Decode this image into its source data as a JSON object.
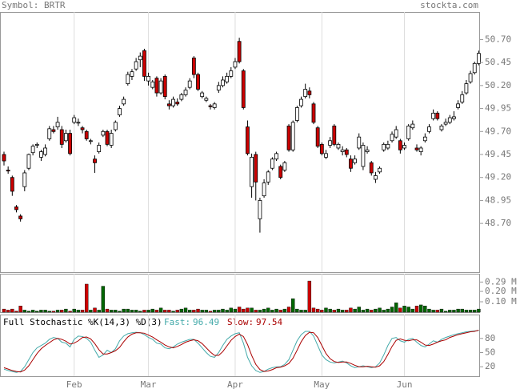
{
  "header": {
    "symbol": "Symbol: BRTR",
    "source": "stockta.com"
  },
  "chart_data": [
    {
      "type": "candlestick",
      "categories": [
        null,
        null,
        null,
        null,
        null,
        null,
        null,
        null,
        null,
        null,
        null,
        null,
        null,
        null,
        null,
        null,
        null,
        "Feb",
        null,
        null,
        null,
        null,
        null,
        null,
        null,
        null,
        null,
        null,
        null,
        null,
        null,
        null,
        null,
        null,
        null,
        "Mar",
        null,
        null,
        null,
        null,
        null,
        null,
        null,
        null,
        null,
        null,
        null,
        null,
        null,
        null,
        null,
        null,
        null,
        null,
        null,
        null,
        "Apr",
        null,
        null,
        null,
        null,
        null,
        null,
        null,
        null,
        null,
        null,
        null,
        null,
        null,
        null,
        null,
        null,
        null,
        null,
        null,
        null,
        "May",
        null,
        null,
        null,
        null,
        null,
        null,
        null,
        null,
        null,
        null,
        null,
        null,
        null,
        null,
        null,
        null,
        null,
        null,
        null,
        "Jun",
        null,
        null,
        null,
        null,
        null,
        null,
        null,
        null,
        null,
        null,
        null,
        null,
        null,
        null,
        null,
        null,
        null,
        null
      ],
      "candles": [
        [
          49.45,
          49.48,
          49.33,
          49.38
        ],
        [
          49.28,
          49.32,
          49.24,
          49.27
        ],
        [
          49.2,
          49.22,
          49.0,
          49.05
        ],
        [
          48.88,
          48.9,
          48.82,
          48.85
        ],
        [
          48.78,
          48.8,
          48.72,
          48.75
        ],
        [
          49.1,
          49.28,
          49.05,
          49.25
        ],
        [
          49.3,
          49.46,
          49.28,
          49.45
        ],
        [
          49.47,
          49.56,
          49.44,
          49.54
        ],
        [
          49.55,
          49.58,
          49.52,
          49.56
        ],
        [
          49.42,
          49.5,
          49.38,
          49.48
        ],
        [
          49.45,
          49.56,
          49.43,
          49.52
        ],
        [
          49.62,
          49.76,
          49.6,
          49.73
        ],
        [
          49.72,
          49.76,
          49.68,
          49.7
        ],
        [
          49.75,
          49.86,
          49.72,
          49.8
        ],
        [
          49.72,
          49.76,
          49.52,
          49.56
        ],
        [
          49.6,
          49.72,
          49.58,
          49.68
        ],
        [
          49.68,
          49.72,
          49.44,
          49.46
        ],
        [
          49.8,
          49.88,
          49.78,
          49.85
        ],
        [
          49.8,
          49.84,
          49.76,
          49.8
        ],
        [
          49.74,
          49.76,
          49.68,
          49.72
        ],
        [
          49.7,
          49.72,
          49.6,
          49.62
        ],
        [
          49.6,
          49.62,
          49.56,
          49.6
        ],
        [
          49.4,
          49.44,
          49.25,
          49.36
        ],
        [
          49.48,
          49.58,
          49.46,
          49.55
        ],
        [
          49.66,
          49.72,
          49.64,
          49.7
        ],
        [
          49.7,
          49.72,
          49.54,
          49.56
        ],
        [
          49.55,
          49.72,
          49.52,
          49.68
        ],
        [
          49.72,
          49.82,
          49.7,
          49.8
        ],
        [
          49.88,
          49.98,
          49.86,
          49.95
        ],
        [
          50.0,
          50.08,
          49.98,
          50.05
        ],
        [
          50.22,
          50.35,
          50.2,
          50.32
        ],
        [
          50.3,
          50.38,
          50.26,
          50.35
        ],
        [
          50.38,
          50.5,
          50.36,
          50.46
        ],
        [
          50.48,
          50.56,
          50.4,
          50.52
        ],
        [
          50.58,
          50.6,
          50.25,
          50.3
        ],
        [
          50.25,
          50.34,
          50.2,
          50.3
        ],
        [
          50.18,
          50.26,
          50.16,
          50.24
        ],
        [
          50.28,
          50.3,
          50.08,
          50.12
        ],
        [
          50.12,
          50.28,
          50.1,
          50.25
        ],
        [
          50.3,
          50.32,
          50.05,
          50.08
        ],
        [
          50.0,
          50.04,
          49.94,
          49.98
        ],
        [
          49.98,
          50.08,
          49.96,
          50.05
        ],
        [
          50.02,
          50.06,
          49.98,
          50.0
        ],
        [
          50.05,
          50.12,
          50.03,
          50.1
        ],
        [
          50.1,
          50.18,
          50.08,
          50.15
        ],
        [
          50.18,
          50.28,
          50.16,
          50.25
        ],
        [
          50.5,
          50.52,
          50.28,
          50.32
        ],
        [
          50.32,
          50.34,
          50.14,
          50.16
        ],
        [
          50.08,
          50.14,
          50.06,
          50.12
        ],
        [
          50.04,
          50.08,
          50.02,
          50.06
        ],
        [
          49.98,
          50.0,
          49.94,
          49.97
        ],
        [
          49.96,
          50.02,
          49.94,
          50.0
        ],
        [
          50.15,
          50.24,
          50.12,
          50.2
        ],
        [
          50.2,
          50.3,
          50.18,
          50.26
        ],
        [
          50.24,
          50.34,
          50.22,
          50.3
        ],
        [
          50.3,
          50.4,
          50.28,
          50.36
        ],
        [
          50.4,
          50.5,
          50.38,
          50.46
        ],
        [
          50.68,
          50.72,
          50.44,
          50.46
        ],
        [
          50.36,
          50.38,
          49.94,
          49.96
        ],
        [
          49.75,
          49.82,
          49.44,
          49.46
        ],
        [
          49.1,
          49.46,
          48.98,
          49.42
        ],
        [
          49.45,
          49.48,
          48.95,
          49.15
        ],
        [
          48.75,
          48.98,
          48.6,
          48.95
        ],
        [
          49.0,
          49.18,
          48.98,
          49.14
        ],
        [
          49.15,
          49.28,
          49.12,
          49.26
        ],
        [
          49.3,
          49.42,
          49.28,
          49.4
        ],
        [
          49.4,
          49.48,
          49.38,
          49.46
        ],
        [
          49.32,
          49.34,
          49.18,
          49.2
        ],
        [
          49.28,
          49.38,
          49.26,
          49.36
        ],
        [
          49.76,
          49.78,
          49.48,
          49.5
        ],
        [
          49.5,
          49.82,
          49.48,
          49.8
        ],
        [
          49.82,
          49.98,
          49.8,
          49.96
        ],
        [
          49.98,
          50.08,
          49.96,
          50.05
        ],
        [
          50.08,
          50.22,
          50.06,
          50.16
        ],
        [
          50.14,
          50.18,
          50.06,
          50.1
        ],
        [
          50.0,
          50.02,
          49.78,
          49.8
        ],
        [
          49.74,
          49.76,
          49.52,
          49.54
        ],
        [
          49.56,
          49.58,
          49.44,
          49.46
        ],
        [
          49.42,
          49.5,
          49.4,
          49.46
        ],
        [
          49.55,
          49.64,
          49.52,
          49.6
        ],
        [
          49.76,
          49.78,
          49.54,
          49.56
        ],
        [
          49.52,
          49.58,
          49.5,
          49.56
        ],
        [
          49.48,
          49.54,
          49.44,
          49.5
        ],
        [
          49.5,
          49.52,
          49.42,
          49.45
        ],
        [
          49.4,
          49.44,
          49.26,
          49.3
        ],
        [
          49.36,
          49.44,
          49.34,
          49.4
        ],
        [
          49.52,
          49.68,
          49.5,
          49.64
        ],
        [
          49.32,
          49.58,
          49.28,
          49.55
        ],
        [
          49.48,
          49.54,
          49.46,
          49.5
        ],
        [
          49.36,
          49.38,
          49.22,
          49.25
        ],
        [
          49.18,
          49.26,
          49.14,
          49.22
        ],
        [
          49.26,
          49.32,
          49.24,
          49.3
        ],
        [
          49.5,
          49.58,
          49.48,
          49.56
        ],
        [
          49.52,
          49.6,
          49.5,
          49.56
        ],
        [
          49.6,
          49.7,
          49.58,
          49.67
        ],
        [
          49.64,
          49.76,
          49.62,
          49.72
        ],
        [
          49.6,
          49.62,
          49.46,
          49.5
        ],
        [
          49.52,
          49.58,
          49.5,
          49.55
        ],
        [
          49.62,
          49.78,
          49.6,
          49.76
        ],
        [
          49.74,
          49.82,
          49.72,
          49.78
        ],
        [
          49.52,
          49.56,
          49.48,
          49.5
        ],
        [
          49.48,
          49.54,
          49.44,
          49.52
        ],
        [
          49.6,
          49.68,
          49.58,
          49.64
        ],
        [
          49.7,
          49.78,
          49.68,
          49.75
        ],
        [
          49.84,
          49.94,
          49.82,
          49.9
        ],
        [
          49.9,
          49.92,
          49.82,
          49.84
        ],
        [
          49.72,
          49.78,
          49.7,
          49.76
        ],
        [
          49.78,
          49.84,
          49.76,
          49.8
        ],
        [
          49.8,
          49.88,
          49.78,
          49.85
        ],
        [
          49.84,
          49.92,
          49.82,
          49.86
        ],
        [
          49.96,
          50.04,
          49.94,
          50.0
        ],
        [
          50.02,
          50.14,
          50.0,
          50.1
        ],
        [
          50.12,
          50.26,
          50.1,
          50.22
        ],
        [
          50.24,
          50.36,
          50.22,
          50.33
        ],
        [
          50.34,
          50.46,
          50.32,
          50.44
        ],
        [
          50.44,
          50.58,
          50.42,
          50.55
        ]
      ],
      "up_color": "#ffffff",
      "down_color": "#cc0000",
      "ylim": [
        48.17,
        51.0
      ],
      "yticks": [
        {
          "value": 50.7,
          "label": "50.70"
        },
        50.45,
        {
          "value": 50.2,
          "label": "50.20"
        },
        49.95,
        {
          "value": 49.7,
          "label": "49.70"
        },
        49.45,
        {
          "value": 49.2,
          "label": "49.20"
        },
        48.95,
        {
          "value": 48.7,
          "label": "48.70"
        }
      ]
    },
    {
      "type": "bar",
      "values": [
        0.03,
        0.02,
        0.03,
        0.01,
        0.06,
        0.02,
        0.01,
        0.02,
        0.01,
        0.02,
        0.02,
        0.01,
        0.01,
        0.02,
        0.02,
        0.03,
        0.01,
        0.03,
        0.02,
        0.02,
        0.27,
        0.02,
        0.04,
        0.02,
        0.25,
        0.03,
        0.02,
        0.02,
        0.01,
        0.03,
        0.03,
        0.02,
        0.02,
        0.01,
        0.02,
        0.02,
        0.03,
        0.02,
        0.04,
        0.02,
        0.02,
        0.01,
        0.02,
        0.03,
        0.04,
        0.02,
        0.02,
        0.03,
        0.02,
        0.02,
        0.01,
        0.02,
        0.02,
        0.03,
        0.02,
        0.04,
        0.03,
        0.05,
        0.03,
        0.04,
        0.04,
        0.02,
        0.02,
        0.03,
        0.04,
        0.02,
        0.03,
        0.02,
        0.03,
        0.05,
        0.13,
        0.03,
        0.02,
        0.02,
        0.3,
        0.04,
        0.03,
        0.02,
        0.04,
        0.03,
        0.02,
        0.03,
        0.02,
        0.02,
        0.04,
        0.03,
        0.05,
        0.02,
        0.03,
        0.02,
        0.03,
        0.04,
        0.02,
        0.03,
        0.05,
        0.09,
        0.04,
        0.06,
        0.05,
        0.03,
        0.06,
        0.07,
        0.06,
        0.03,
        0.02,
        0.02,
        0.03,
        0.01,
        0.02,
        0.02,
        0.03,
        0.03,
        0.02,
        0.02,
        0.02,
        0.03
      ],
      "up_color": "#006600",
      "down_color": "#cc0000",
      "ylim": [
        0,
        0.37
      ],
      "yticks": [
        {
          "value": 0.29,
          "label": "0.29 M"
        },
        {
          "value": 0.2,
          "label": "0.20 M"
        },
        {
          "value": 0.1,
          "label": "0.10 M"
        }
      ]
    },
    {
      "type": "line",
      "title": "Full Stochastic %K(14,3) %D(3)",
      "series": [
        {
          "name": "Fast:",
          "color": "#44aaaa",
          "values": [
            15,
            12,
            10,
            8,
            10,
            20,
            35,
            50,
            60,
            65,
            70,
            78,
            82,
            80,
            72,
            70,
            62,
            78,
            85,
            84,
            80,
            72,
            55,
            40,
            45,
            55,
            50,
            58,
            75,
            85,
            90,
            92,
            93,
            92,
            88,
            82,
            78,
            70,
            68,
            60,
            58,
            62,
            68,
            72,
            75,
            78,
            78,
            70,
            60,
            50,
            42,
            40,
            50,
            65,
            78,
            85,
            90,
            92,
            70,
            40,
            22,
            12,
            8,
            10,
            15,
            18,
            20,
            20,
            25,
            35,
            55,
            75,
            88,
            95,
            95,
            85,
            65,
            45,
            35,
            30,
            28,
            30,
            32,
            28,
            22,
            18,
            20,
            22,
            20,
            18,
            20,
            28,
            45,
            65,
            80,
            82,
            75,
            72,
            78,
            80,
            72,
            65,
            62,
            68,
            75,
            72,
            78,
            82,
            85,
            88,
            90,
            92,
            94,
            95,
            96,
            96.49
          ]
        },
        {
          "name": "Slow:",
          "color": "#aa0000",
          "values": [
            18,
            15,
            12,
            10,
            9,
            13,
            22,
            35,
            48,
            58,
            65,
            71,
            77,
            80,
            78,
            74,
            68,
            70,
            75,
            82,
            83,
            79,
            69,
            56,
            47,
            47,
            50,
            54,
            61,
            73,
            83,
            89,
            92,
            92,
            91,
            87,
            83,
            77,
            72,
            66,
            62,
            60,
            63,
            67,
            72,
            75,
            77,
            75,
            69,
            60,
            51,
            44,
            44,
            52,
            64,
            76,
            84,
            89,
            84,
            67,
            44,
            25,
            14,
            10,
            11,
            14,
            18,
            19,
            22,
            27,
            38,
            55,
            73,
            86,
            93,
            92,
            82,
            65,
            48,
            37,
            31,
            29,
            30,
            30,
            27,
            23,
            20,
            20,
            21,
            20,
            19,
            22,
            31,
            46,
            63,
            76,
            79,
            76,
            75,
            77,
            77,
            72,
            66,
            65,
            68,
            72,
            75,
            77,
            82,
            85,
            88,
            90,
            92,
            94,
            95,
            97.54
          ]
        }
      ],
      "ylim": [
        0,
        100
      ],
      "yticks": [
        80,
        50,
        20
      ]
    }
  ]
}
